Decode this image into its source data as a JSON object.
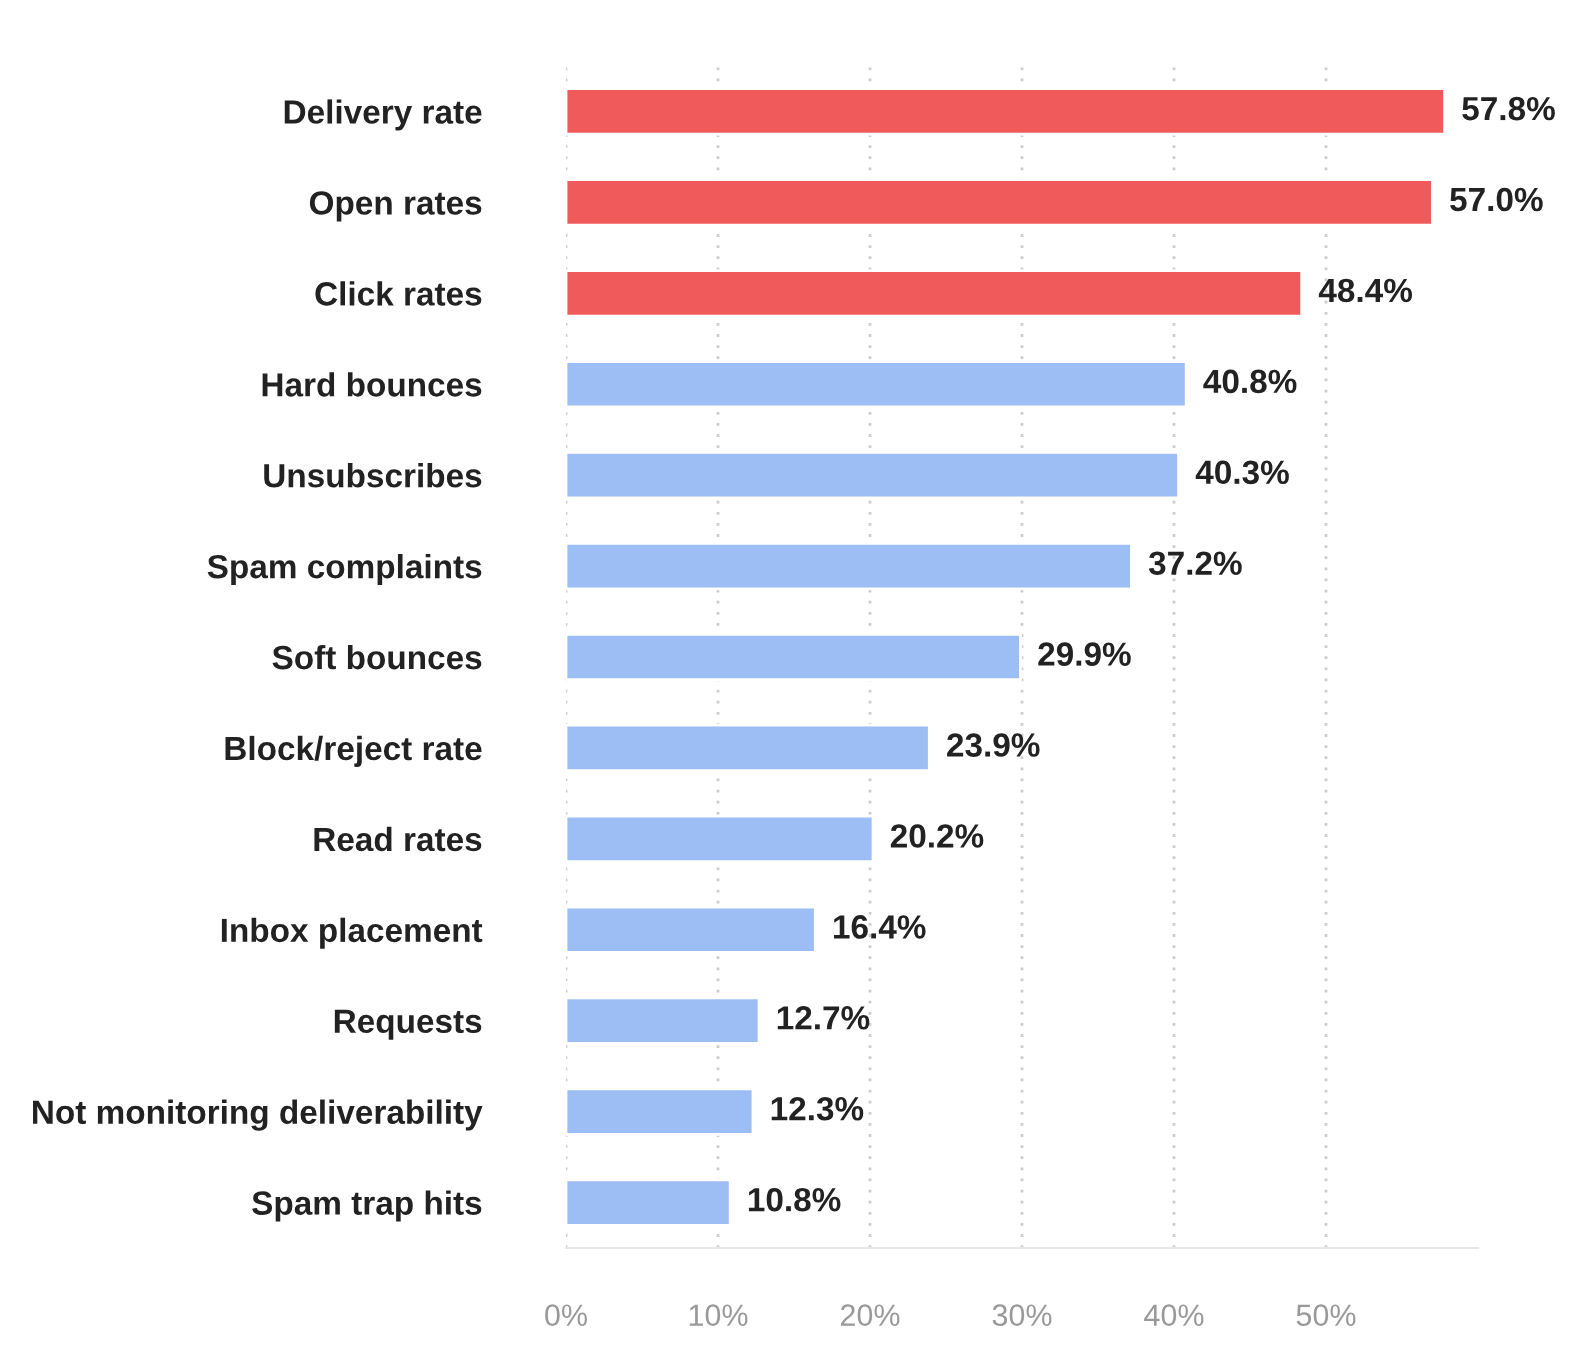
{
  "chart_data": {
    "type": "bar",
    "orientation": "horizontal",
    "categories": [
      "Delivery rate",
      "Open rates",
      "Click rates",
      "Hard bounces",
      "Unsubscribes",
      "Spam complaints",
      "Soft bounces",
      "Block/reject rate",
      "Read rates",
      "Inbox placement",
      "Requests",
      "Not monitoring deliverability",
      "Spam trap hits"
    ],
    "values": [
      57.8,
      57.0,
      48.4,
      40.8,
      40.3,
      37.2,
      29.9,
      23.9,
      20.2,
      16.4,
      12.7,
      12.3,
      10.8
    ],
    "colors": [
      "#f05a5a",
      "#f05a5a",
      "#f05a5a",
      "#9dbdf5",
      "#9dbdf5",
      "#9dbdf5",
      "#9dbdf5",
      "#9dbdf5",
      "#9dbdf5",
      "#9dbdf5",
      "#9dbdf5",
      "#9dbdf5",
      "#9dbdf5"
    ],
    "value_labels": [
      "57.8%",
      "57.0%",
      "48.4%",
      "40.8%",
      "40.3%",
      "37.2%",
      "29.9%",
      "23.9%",
      "20.2%",
      "16.4%",
      "12.7%",
      "12.3%",
      "10.8%"
    ],
    "xlim": [
      0,
      60
    ],
    "xticks": [
      {
        "value": 0,
        "label": "0%"
      },
      {
        "value": 10,
        "label": "10%"
      },
      {
        "value": 20,
        "label": "20%"
      },
      {
        "value": 30,
        "label": "30%"
      },
      {
        "value": 40,
        "label": "40%"
      },
      {
        "value": 50,
        "label": "50%"
      }
    ],
    "grid": "x",
    "legend": false
  }
}
